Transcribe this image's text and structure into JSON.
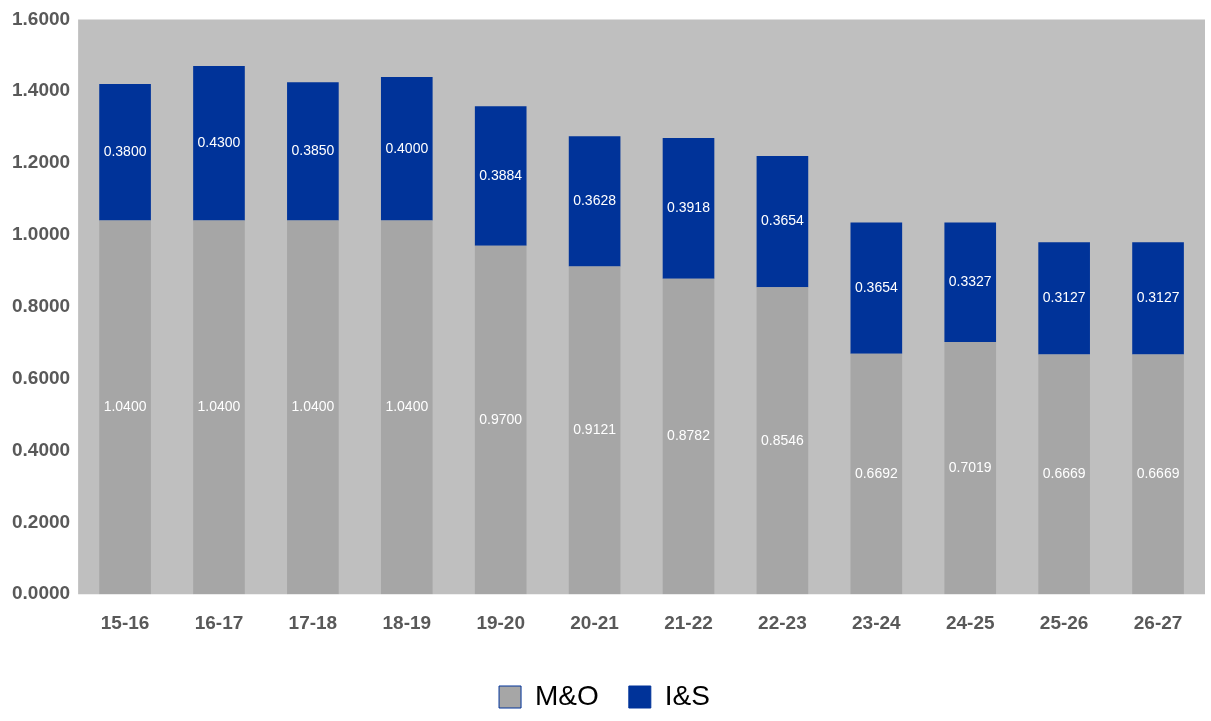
{
  "chart_data": {
    "type": "bar",
    "stacked": true,
    "categories": [
      "15-16",
      "16-17",
      "17-18",
      "18-19",
      "19-20",
      "20-21",
      "21-22",
      "22-23",
      "23-24",
      "24-25",
      "25-26",
      "26-27"
    ],
    "series": [
      {
        "name": "M&O",
        "color": "#a6a6a6",
        "values": [
          1.04,
          1.04,
          1.04,
          1.04,
          0.97,
          0.9121,
          0.8782,
          0.8546,
          0.6692,
          0.7019,
          0.6669,
          0.6669
        ],
        "value_labels": [
          "1.0400",
          "1.0400",
          "1.0400",
          "1.0400",
          "0.9700",
          "0.9121",
          "0.8782",
          "0.8546",
          "0.6692",
          "0.7019",
          "0.6669",
          "0.6669"
        ]
      },
      {
        "name": "I&S",
        "color": "#003399",
        "values": [
          0.38,
          0.43,
          0.385,
          0.4,
          0.3884,
          0.3628,
          0.3918,
          0.3654,
          0.3654,
          0.3327,
          0.3127,
          0.3127
        ],
        "value_labels": [
          "0.3800",
          "0.4300",
          "0.3850",
          "0.4000",
          "0.3884",
          "0.3628",
          "0.3918",
          "0.3654",
          "0.3654",
          "0.3327",
          "0.3127",
          "0.3127"
        ]
      }
    ],
    "ylim": [
      0,
      1.6
    ],
    "yticks": [
      {
        "value": 0,
        "label": "0.0000"
      },
      {
        "value": 0.2,
        "label": "0.2000"
      },
      {
        "value": 0.4,
        "label": "0.4000"
      },
      {
        "value": 0.6,
        "label": "0.6000"
      },
      {
        "value": 0.8,
        "label": "0.8000"
      },
      {
        "value": 1,
        "label": "1.0000"
      },
      {
        "value": 1.2,
        "label": "1.2000"
      },
      {
        "value": 1.4,
        "label": "1.4000"
      },
      {
        "value": 1.6,
        "label": "1.6000"
      }
    ],
    "grid": false,
    "legend": "bottom"
  }
}
